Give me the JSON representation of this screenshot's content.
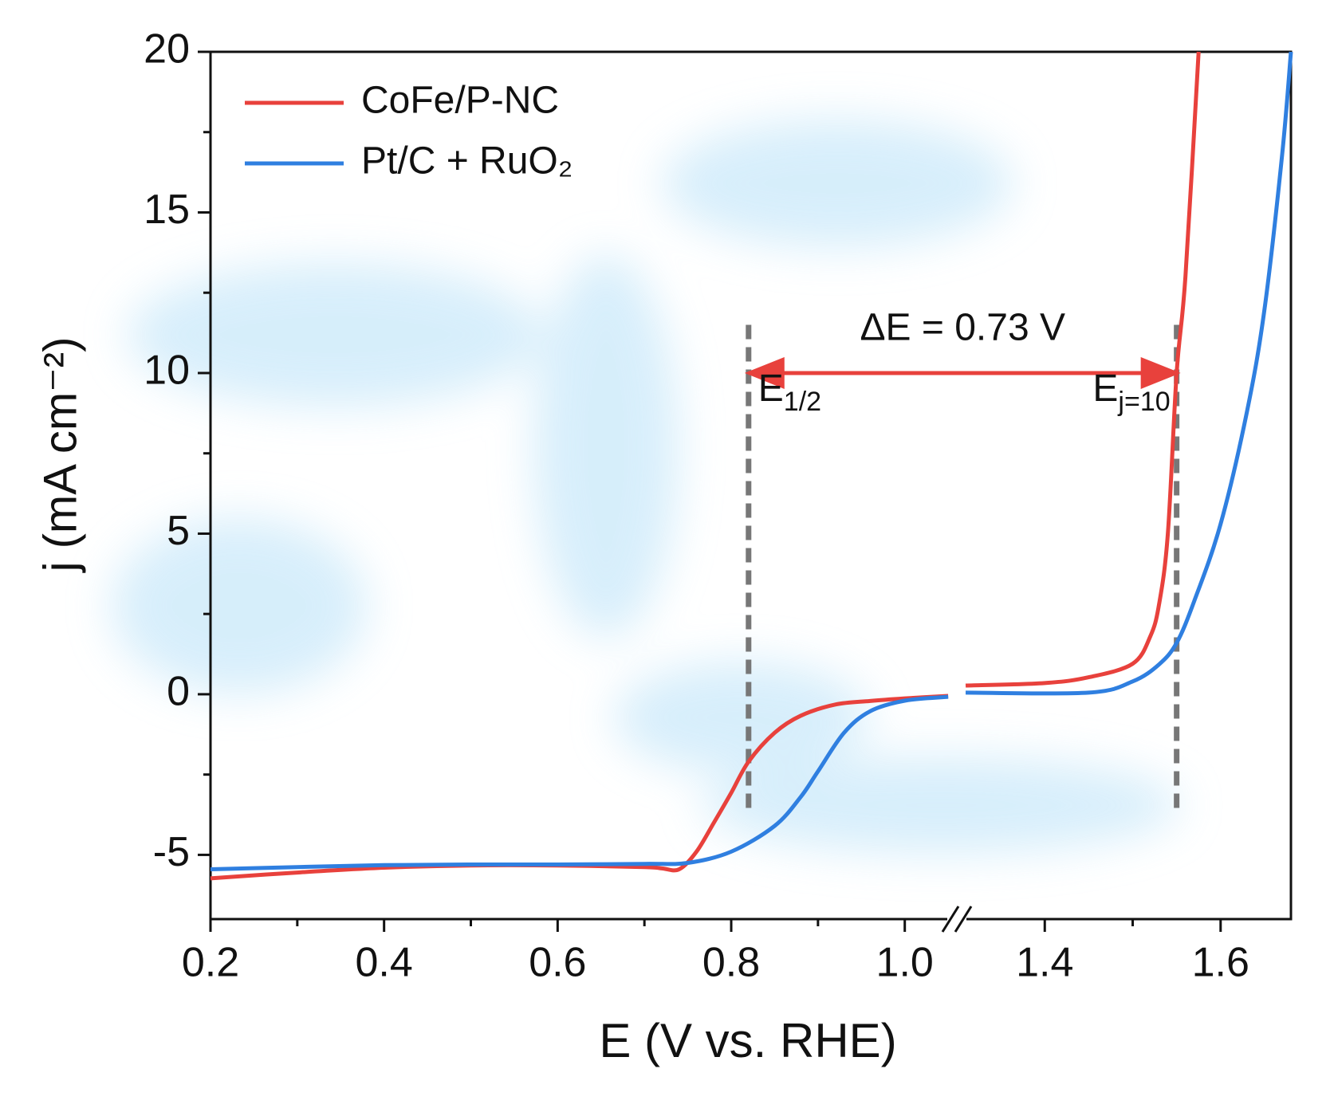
{
  "chart_data": {
    "type": "line",
    "x_label": "E (V vs. RHE)",
    "y_label": "j (mA cm⁻²)",
    "x_segments": [
      {
        "xlim": [
          0.2,
          1.06
        ],
        "xticks": [
          0.2,
          0.4,
          0.6,
          0.8,
          {
            "value": 1,
            "label": "1.0"
          }
        ],
        "minor_xticks": [
          0.3,
          0.5,
          0.7,
          0.9
        ]
      },
      {
        "xlim": [
          1.3,
          1.68
        ],
        "xticks": [
          1.4,
          1.6
        ],
        "minor_xticks": [
          1.5
        ]
      }
    ],
    "ylim": [
      -7,
      20
    ],
    "yticks": [
      -5,
      0,
      5,
      10,
      15,
      20
    ],
    "minor_yticks": [
      -2.5,
      2.5,
      7.5,
      12.5,
      17.5
    ],
    "legend": "upper left",
    "series": [
      {
        "name": "CoFe/P-NC",
        "color": "#e8413c",
        "x": [
          0.2,
          0.3,
          0.4,
          0.5,
          0.6,
          0.7,
          0.72,
          0.74,
          0.76,
          0.78,
          0.8,
          0.82,
          0.85,
          0.88,
          0.92,
          0.96,
          1.0,
          1.05,
          null,
          1.31,
          1.4,
          1.45,
          1.5,
          1.52,
          1.53,
          1.54,
          1.55,
          1.56,
          1.575
        ],
        "values": [
          -5.73,
          -5.55,
          -5.4,
          -5.33,
          -5.33,
          -5.38,
          -5.42,
          -5.45,
          -4.9,
          -4.0,
          -3.07,
          -2.1,
          -1.2,
          -0.67,
          -0.32,
          -0.21,
          -0.13,
          -0.05,
          null,
          0.27,
          0.35,
          0.53,
          0.95,
          1.8,
          2.8,
          5,
          10,
          13,
          20
        ]
      },
      {
        "name": "Pt/C + RuO₂",
        "color": "#2f7fe0",
        "x": [
          0.2,
          0.3,
          0.4,
          0.5,
          0.6,
          0.7,
          0.75,
          0.8,
          0.85,
          0.88,
          0.9,
          0.93,
          0.96,
          1.0,
          1.05,
          null,
          1.31,
          1.45,
          1.5,
          1.53,
          1.55,
          1.57,
          1.6,
          1.63,
          1.65,
          1.67,
          1.68
        ],
        "values": [
          -5.45,
          -5.38,
          -5.32,
          -5.3,
          -5.3,
          -5.28,
          -5.25,
          -4.9,
          -4.1,
          -3.2,
          -2.4,
          -1.2,
          -0.53,
          -0.2,
          -0.08,
          null,
          0.05,
          0.05,
          0.4,
          0.93,
          1.6,
          2.9,
          5.3,
          8.8,
          12,
          16.8,
          20
        ]
      }
    ],
    "annotations": {
      "delta": {
        "text": "ΔE = 0.73 V",
        "from": 0.82,
        "to": 1.55,
        "y": 10,
        "color": "#e8413c"
      },
      "markers": [
        {
          "x": 0.82,
          "text": "E",
          "subscript": "1/2"
        },
        {
          "x": 1.55,
          "text": "E",
          "subscript": "j=10"
        }
      ]
    }
  }
}
